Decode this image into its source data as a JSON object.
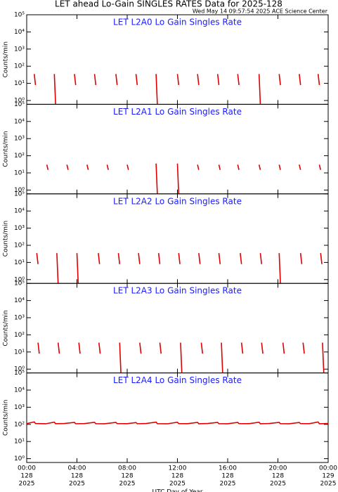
{
  "header": {
    "title": "LET ahead Lo-Gain SINGLES RATES Data for 2025-128",
    "timestamp": "Wed May 14 09:57:54 2025 ACE Science Center"
  },
  "chart_data": [
    {
      "type": "line",
      "title": "LET L2A0 Lo Gain Singles Rate",
      "ylabel": "Counts/min",
      "color": "#e00000",
      "yscale": "log",
      "xlim": [
        0,
        24
      ],
      "xticks": [
        0,
        4,
        8,
        12,
        16,
        20,
        24
      ],
      "ylim": [
        0.6,
        100000
      ],
      "yticks": [
        {
          "value": 1,
          "label": "10⁰"
        },
        {
          "value": 10,
          "label": "10¹"
        },
        {
          "value": 100,
          "label": "10²"
        },
        {
          "value": 1000,
          "label": "10³"
        },
        {
          "value": 10000,
          "label": "10⁴"
        },
        {
          "value": 100000,
          "label": "10⁵"
        }
      ],
      "x": [
        0.6,
        0.7,
        0.8,
        2.2,
        2.3,
        2.4,
        3.8,
        3.9,
        4.0,
        5.4,
        5.5,
        5.6,
        7.1,
        7.2,
        7.3,
        8.7,
        8.8,
        8.9,
        10.3,
        10.4,
        10.5,
        12.0,
        12.1,
        12.2,
        13.6,
        13.7,
        13.8,
        15.2,
        15.3,
        15.4,
        16.8,
        16.9,
        17.0,
        18.5,
        18.6,
        18.7,
        20.1,
        20.2,
        20.3,
        21.7,
        21.8,
        21.9,
        23.2,
        23.3,
        23.4
      ],
      "values": [
        35,
        8,
        null,
        35,
        0.6,
        null,
        35,
        8,
        null,
        35,
        8,
        null,
        35,
        8,
        null,
        35,
        8,
        null,
        35,
        0.6,
        null,
        35,
        8,
        null,
        35,
        8,
        null,
        35,
        8,
        null,
        35,
        8,
        null,
        35,
        0.6,
        null,
        35,
        8,
        null,
        35,
        8,
        null,
        35,
        8,
        null
      ]
    },
    {
      "type": "line",
      "title": "LET L2A1 Lo Gain Singles Rate",
      "ylabel": "Counts/min",
      "color": "#e00000",
      "yscale": "log",
      "xlim": [
        0,
        24
      ],
      "xticks": [
        0,
        4,
        8,
        12,
        16,
        20,
        24
      ],
      "ylim": [
        0.6,
        100000
      ],
      "yticks": [
        {
          "value": 1,
          "label": "10⁰"
        },
        {
          "value": 10,
          "label": "10¹"
        },
        {
          "value": 100,
          "label": "10²"
        },
        {
          "value": 1000,
          "label": "10³"
        },
        {
          "value": 10000,
          "label": "10⁴"
        },
        {
          "value": 100000,
          "label": "10⁵"
        }
      ],
      "x": [
        1.6,
        1.7,
        1.8,
        3.2,
        3.3,
        3.4,
        4.8,
        4.9,
        5.0,
        6.4,
        6.5,
        6.6,
        8.0,
        8.1,
        8.2,
        10.3,
        10.4,
        10.5,
        12.0,
        12.1,
        12.2,
        13.6,
        13.7,
        13.8,
        15.3,
        15.4,
        15.5,
        16.8,
        16.9,
        17.0,
        18.5,
        18.6,
        18.7,
        20.1,
        20.2,
        20.3,
        21.7,
        21.8,
        21.9,
        23.3,
        23.4,
        23.5
      ],
      "values": [
        30,
        15,
        null,
        30,
        15,
        null,
        30,
        15,
        null,
        30,
        15,
        null,
        30,
        15,
        null,
        35,
        0.6,
        null,
        35,
        0.6,
        null,
        30,
        15,
        null,
        30,
        15,
        null,
        30,
        15,
        null,
        30,
        15,
        null,
        30,
        15,
        null,
        30,
        15,
        null,
        30,
        15,
        null
      ]
    },
    {
      "type": "line",
      "title": "LET L2A2 Lo Gain Singles Rate",
      "ylabel": "Counts/min",
      "color": "#e00000",
      "yscale": "log",
      "xlim": [
        0,
        24
      ],
      "xticks": [
        0,
        4,
        8,
        12,
        16,
        20,
        24
      ],
      "ylim": [
        0.6,
        100000
      ],
      "yticks": [
        {
          "value": 1,
          "label": "10⁰"
        },
        {
          "value": 10,
          "label": "10¹"
        },
        {
          "value": 100,
          "label": "10²"
        },
        {
          "value": 1000,
          "label": "10³"
        },
        {
          "value": 10000,
          "label": "10⁴"
        },
        {
          "value": 100000,
          "label": "10⁵"
        }
      ],
      "x": [
        0.8,
        0.9,
        1.0,
        2.4,
        2.5,
        2.6,
        4.0,
        4.1,
        4.2,
        5.7,
        5.8,
        5.9,
        7.3,
        7.4,
        7.5,
        8.9,
        9.0,
        9.1,
        10.5,
        10.6,
        10.7,
        12.1,
        12.2,
        12.3,
        13.7,
        13.8,
        13.9,
        15.3,
        15.4,
        15.5,
        17.0,
        17.1,
        17.2,
        18.6,
        18.7,
        18.8,
        20.1,
        20.2,
        20.3,
        21.8,
        21.9,
        22.0,
        23.4,
        23.5,
        23.6
      ],
      "values": [
        35,
        8,
        null,
        35,
        0.6,
        null,
        35,
        0.6,
        null,
        35,
        8,
        null,
        35,
        8,
        null,
        35,
        8,
        null,
        35,
        8,
        null,
        35,
        8,
        null,
        35,
        8,
        null,
        35,
        8,
        null,
        35,
        8,
        null,
        35,
        8,
        null,
        35,
        0.6,
        null,
        35,
        8,
        null,
        35,
        8,
        null
      ]
    },
    {
      "type": "line",
      "title": "LET L2A3 Lo Gain Singles Rate",
      "ylabel": "Counts/min",
      "color": "#e00000",
      "yscale": "log",
      "xlim": [
        0,
        24
      ],
      "xticks": [
        0,
        4,
        8,
        12,
        16,
        20,
        24
      ],
      "ylim": [
        0.6,
        100000
      ],
      "yticks": [
        {
          "value": 1,
          "label": "10⁰"
        },
        {
          "value": 10,
          "label": "10¹"
        },
        {
          "value": 100,
          "label": "10²"
        },
        {
          "value": 1000,
          "label": "10³"
        },
        {
          "value": 10000,
          "label": "10⁴"
        },
        {
          "value": 100000,
          "label": "10⁵"
        }
      ],
      "x": [
        0.9,
        1.0,
        1.1,
        2.5,
        2.6,
        2.7,
        4.15,
        4.25,
        4.35,
        5.75,
        5.85,
        5.95,
        7.4,
        7.5,
        7.6,
        9.0,
        9.1,
        9.2,
        10.6,
        10.7,
        10.8,
        12.25,
        12.35,
        12.45,
        13.9,
        14.0,
        14.1,
        15.5,
        15.6,
        15.7,
        17.1,
        17.2,
        17.3,
        18.7,
        18.8,
        18.9,
        20.4,
        20.5,
        20.6,
        22.0,
        22.1,
        22.2,
        23.55,
        23.65,
        23.75
      ],
      "values": [
        35,
        8,
        null,
        35,
        8,
        null,
        35,
        8,
        null,
        35,
        8,
        null,
        35,
        0.6,
        null,
        35,
        8,
        null,
        35,
        8,
        null,
        35,
        0.6,
        null,
        35,
        8,
        null,
        35,
        0.6,
        null,
        35,
        8,
        null,
        35,
        8,
        null,
        35,
        8,
        null,
        35,
        8,
        null,
        35,
        0.6,
        null
      ]
    },
    {
      "type": "line",
      "title": "LET L2A4 Lo Gain Singles Rate",
      "ylabel": "Counts/min",
      "color": "#e00000",
      "yscale": "log",
      "xlabel": "UTC Day of Year",
      "xlim": [
        0,
        24
      ],
      "xticks": [
        {
          "value": 0,
          "label": "00:00",
          "day": "128",
          "year": "2025"
        },
        {
          "value": 4,
          "label": "04:00",
          "day": "128",
          "year": "2025"
        },
        {
          "value": 8,
          "label": "08:00",
          "day": "128",
          "year": "2025"
        },
        {
          "value": 12,
          "label": "12:00",
          "day": "128",
          "year": "2025"
        },
        {
          "value": 16,
          "label": "16:00",
          "day": "128",
          "year": "2025"
        },
        {
          "value": 20,
          "label": "20:00",
          "day": "128",
          "year": "2025"
        },
        {
          "value": 24,
          "label": "00:00",
          "day": "129",
          "year": "2025"
        }
      ],
      "ylim": [
        0.6,
        100000
      ],
      "yticks": [
        {
          "value": 1,
          "label": "10⁰"
        },
        {
          "value": 10,
          "label": "10¹"
        },
        {
          "value": 100,
          "label": "10²"
        },
        {
          "value": 1000,
          "label": "10³"
        },
        {
          "value": 10000,
          "label": "10⁴"
        },
        {
          "value": 100000,
          "label": "10⁵"
        }
      ],
      "x": [
        0,
        0.6,
        0.7,
        1.5,
        2.2,
        2.3,
        3.0,
        3.8,
        3.9,
        4.6,
        5.4,
        5.5,
        6.2,
        7.1,
        7.2,
        8.0,
        8.7,
        8.8,
        9.5,
        10.3,
        10.4,
        11.2,
        12.0,
        12.1,
        12.8,
        13.6,
        13.7,
        14.4,
        15.2,
        15.3,
        16.0,
        16.8,
        16.9,
        17.7,
        18.5,
        18.6,
        19.3,
        20.1,
        20.2,
        20.9,
        21.7,
        21.8,
        22.5,
        23.2,
        23.3,
        24
      ],
      "values": [
        110,
        140,
        112,
        108,
        135,
        110,
        112,
        130,
        109,
        111,
        132,
        110,
        108,
        130,
        111,
        110,
        128,
        109,
        112,
        135,
        110,
        108,
        133,
        111,
        110,
        130,
        109,
        112,
        131,
        110,
        108,
        130,
        111,
        110,
        134,
        109,
        112,
        130,
        110,
        108,
        129,
        111,
        110,
        138,
        109,
        112
      ]
    }
  ]
}
